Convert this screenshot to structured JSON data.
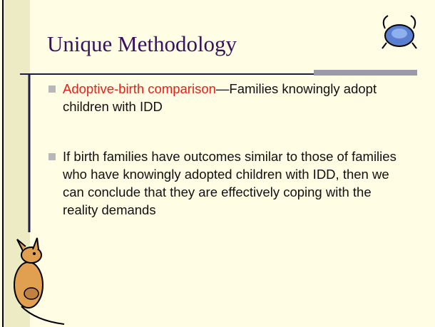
{
  "header": {
    "title": "Unique Methodology"
  },
  "bullets": [
    {
      "highlight": "Adoptive-birth comparison",
      "text": "—Families knowingly adopt children with IDD"
    },
    {
      "text": "If birth families have outcomes similar to those of families who have knowingly adopted children with IDD, then we can conclude that they are effectively coping with the reality demands"
    }
  ]
}
